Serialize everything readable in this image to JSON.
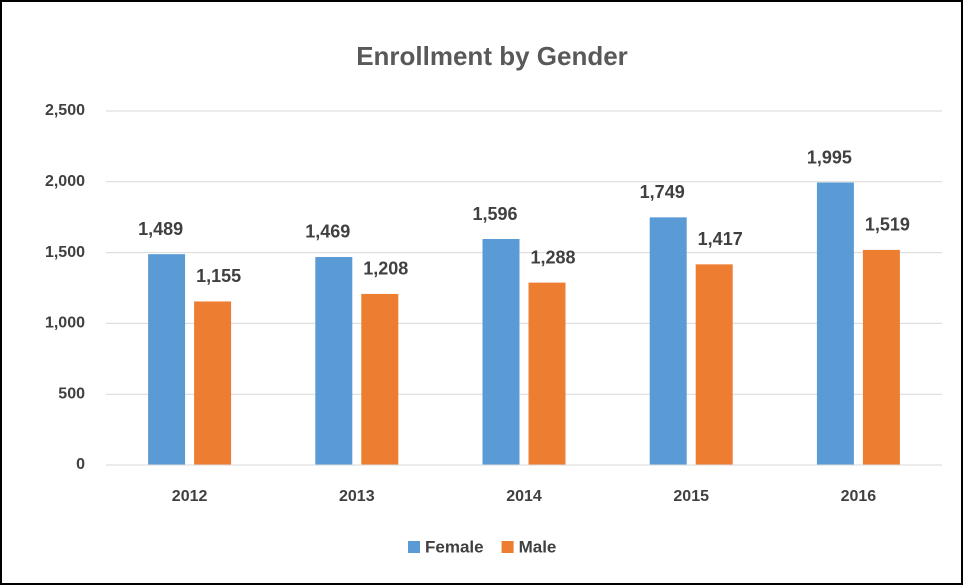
{
  "chart_data": {
    "type": "bar",
    "title": "Enrollment by Gender",
    "categories": [
      "2012",
      "2013",
      "2014",
      "2015",
      "2016"
    ],
    "series": [
      {
        "name": "Female",
        "color": "#5b9bd5",
        "values": [
          1489,
          1469,
          1596,
          1749,
          1995
        ],
        "value_labels": [
          "1,489",
          "1,469",
          "1,596",
          "1,749",
          "1,995"
        ]
      },
      {
        "name": "Male",
        "color": "#ed7d31",
        "values": [
          1155,
          1208,
          1288,
          1417,
          1519
        ],
        "value_labels": [
          "1,155",
          "1,208",
          "1,288",
          "1,417",
          "1,519"
        ]
      }
    ],
    "ylim": [
      0,
      2500
    ],
    "yticks": [
      0,
      {
        "value": 500,
        "label": "500"
      },
      {
        "value": 1000,
        "label": "1,000"
      },
      {
        "value": 1500,
        "label": "1,500"
      },
      {
        "value": 2000,
        "label": "2,000"
      },
      {
        "value": 2500,
        "label": "2,500"
      }
    ],
    "grid": true,
    "legend": "bottom"
  }
}
